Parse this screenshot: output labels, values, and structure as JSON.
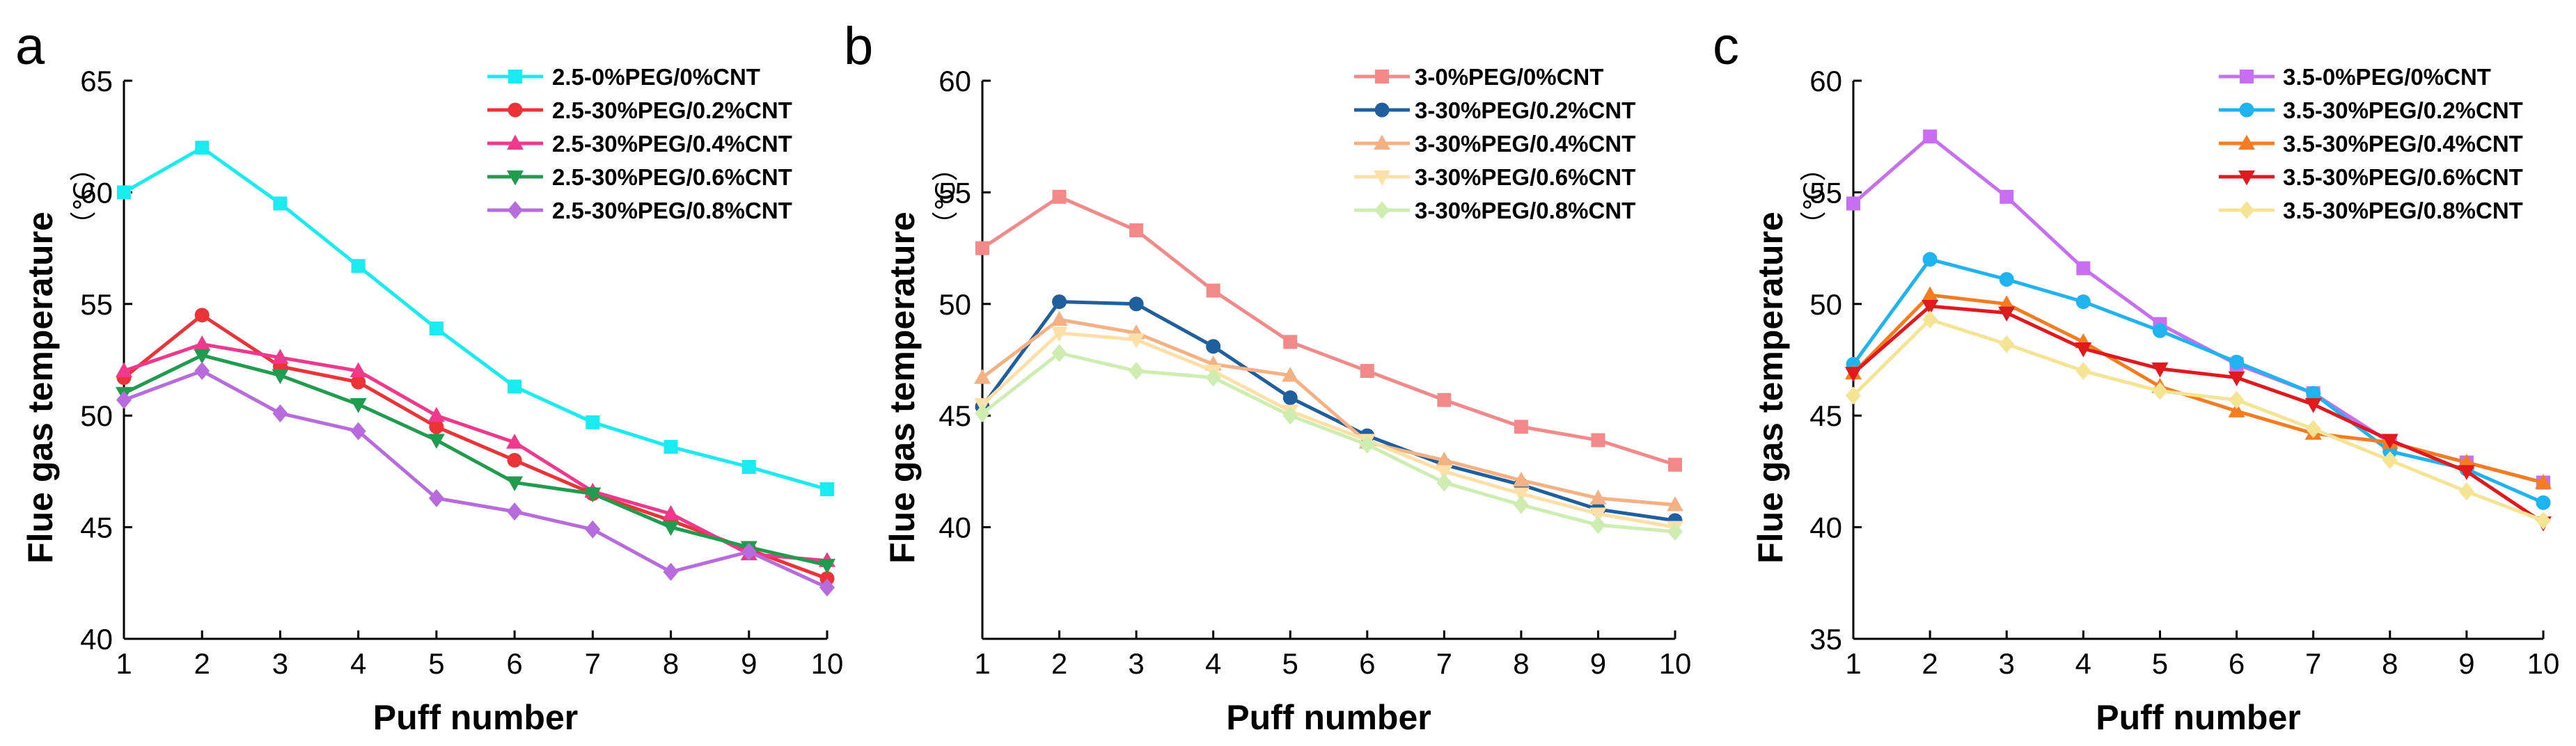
{
  "chart_data": [
    {
      "type": "line",
      "panel_label": "a",
      "xlabel": "Puff number",
      "ylabel": "Flue gas temperature",
      "ylabel_unit": "（℃）",
      "x": [
        1,
        2,
        3,
        4,
        5,
        6,
        7,
        8,
        9,
        10
      ],
      "xlim": [
        1,
        10
      ],
      "ylim": [
        40,
        65
      ],
      "yticks": [
        40,
        45,
        50,
        55,
        60,
        65
      ],
      "legend_position": "top-right",
      "series": [
        {
          "name": "2.5-0%PEG/0%CNT",
          "color": "#19ebf0",
          "marker": "square",
          "values": [
            60.0,
            62.0,
            59.5,
            56.7,
            53.9,
            51.3,
            49.7,
            48.6,
            47.7,
            46.7
          ]
        },
        {
          "name": "2.5-30%PEG/0.2%CNT",
          "color": "#ec3337",
          "marker": "circle",
          "values": [
            51.7,
            54.5,
            52.2,
            51.5,
            49.5,
            48.0,
            46.5,
            45.3,
            44.0,
            42.7
          ]
        },
        {
          "name": "2.5-30%PEG/0.4%CNT",
          "color": "#f0388c",
          "marker": "triangle-up",
          "values": [
            52.0,
            53.2,
            52.6,
            52.0,
            50.0,
            48.8,
            46.6,
            45.6,
            43.8,
            43.5
          ]
        },
        {
          "name": "2.5-30%PEG/0.6%CNT",
          "color": "#1f9c4e",
          "marker": "triangle-down",
          "values": [
            51.0,
            52.7,
            51.8,
            50.5,
            48.9,
            47.0,
            46.5,
            45.0,
            44.1,
            43.3
          ]
        },
        {
          "name": "2.5-30%PEG/0.8%CNT",
          "color": "#b86bdc",
          "marker": "diamond",
          "values": [
            50.7,
            52.0,
            50.1,
            49.3,
            46.3,
            45.7,
            44.9,
            43.0,
            43.9,
            42.3
          ]
        }
      ]
    },
    {
      "type": "line",
      "panel_label": "b",
      "xlabel": "Puff number",
      "ylabel": "Flue gas temperature",
      "ylabel_unit": "（℃）",
      "x": [
        1,
        2,
        3,
        4,
        5,
        6,
        7,
        8,
        9,
        10
      ],
      "xlim": [
        1,
        10
      ],
      "ylim": [
        35,
        60
      ],
      "yticks": [
        40,
        45,
        50,
        55,
        60
      ],
      "legend_position": "top-right",
      "series": [
        {
          "name": "3-0%PEG/0%CNT",
          "color": "#f28a8a",
          "marker": "square",
          "values": [
            52.5,
            54.8,
            53.3,
            50.6,
            48.3,
            47.0,
            45.7,
            44.5,
            43.9,
            42.8
          ]
        },
        {
          "name": "3-30%PEG/0.2%CNT",
          "color": "#1f5f9e",
          "marker": "circle",
          "values": [
            45.4,
            50.1,
            50.0,
            48.1,
            45.8,
            44.1,
            42.8,
            41.9,
            40.8,
            40.3
          ]
        },
        {
          "name": "3-30%PEG/0.4%CNT",
          "color": "#f4b183",
          "marker": "triangle-up",
          "values": [
            46.7,
            49.3,
            48.7,
            47.3,
            46.8,
            43.8,
            43.0,
            42.1,
            41.3,
            41.0
          ]
        },
        {
          "name": "3-30%PEG/0.6%CNT",
          "color": "#fde0a8",
          "marker": "triangle-down",
          "values": [
            45.5,
            48.7,
            48.4,
            47.0,
            45.2,
            43.9,
            42.5,
            41.5,
            40.6,
            40.0
          ]
        },
        {
          "name": "3-30%PEG/0.8%CNT",
          "color": "#cdeeb0",
          "marker": "diamond",
          "values": [
            45.1,
            47.8,
            47.0,
            46.7,
            45.0,
            43.7,
            42.0,
            41.0,
            40.1,
            39.8
          ]
        }
      ]
    },
    {
      "type": "line",
      "panel_label": "c",
      "xlabel": "Puff number",
      "ylabel": "Flue gas temperature",
      "ylabel_unit": "（℃）",
      "x": [
        1,
        2,
        3,
        4,
        5,
        6,
        7,
        8,
        9,
        10
      ],
      "xlim": [
        1,
        10
      ],
      "ylim": [
        35,
        60
      ],
      "yticks": [
        35,
        40,
        45,
        50,
        55,
        60
      ],
      "legend_position": "top-right",
      "series": [
        {
          "name": "3.5-0%PEG/0%CNT",
          "color": "#c86ef0",
          "marker": "square",
          "values": [
            54.5,
            57.5,
            54.8,
            51.6,
            49.1,
            47.3,
            46.0,
            43.8,
            42.9,
            42.0
          ]
        },
        {
          "name": "3.5-30%PEG/0.2%CNT",
          "color": "#1fb3f0",
          "marker": "circle",
          "values": [
            47.3,
            52.0,
            51.1,
            50.1,
            48.8,
            47.4,
            46.0,
            43.4,
            42.6,
            41.1
          ]
        },
        {
          "name": "3.5-30%PEG/0.4%CNT",
          "color": "#f57c1f",
          "marker": "triangle-up",
          "values": [
            46.9,
            50.4,
            50.0,
            48.3,
            46.3,
            45.2,
            44.2,
            43.8,
            42.9,
            42.0
          ]
        },
        {
          "name": "3.5-30%PEG/0.6%CNT",
          "color": "#e0191f",
          "marker": "triangle-down",
          "values": [
            46.9,
            49.9,
            49.6,
            48.0,
            47.1,
            46.7,
            45.5,
            43.9,
            42.5,
            40.2
          ]
        },
        {
          "name": "3.5-30%PEG/0.8%CNT",
          "color": "#f5e494",
          "marker": "diamond",
          "values": [
            45.9,
            49.3,
            48.2,
            47.0,
            46.1,
            45.7,
            44.4,
            43.0,
            41.6,
            40.3
          ]
        }
      ]
    }
  ]
}
